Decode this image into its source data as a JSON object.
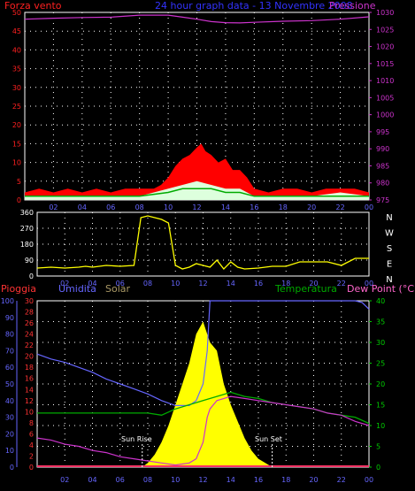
{
  "header": {
    "left_label": "Forza vento",
    "center_label": "24 hour graph data - 13 Novembre 2008",
    "right_label": "Pressione"
  },
  "colors": {
    "bg": "#000000",
    "grid": "#ffffff",
    "wind_left_axis": "#ff2020",
    "pressure": "#cc33cc",
    "gust": "#ff0000",
    "wind_avg": "#ffffff",
    "wind_green": "#00aa00",
    "direction": "#ffff00",
    "rain": "#ff3366",
    "humidity": "#6666ff",
    "solar": "#ffff00",
    "solar_label": "#aa9966",
    "temperature": "#00aa00",
    "dew_point": "#cc33cc",
    "rain_axis": "#ff3333",
    "temp_axis": "#00cc00",
    "time_axis": "#6666ff",
    "dewpoint_label": "#ff66cc"
  },
  "time_ticks": [
    "02",
    "04",
    "06",
    "08",
    "10",
    "12",
    "14",
    "16",
    "18",
    "20",
    "22",
    "00"
  ],
  "wind_pressure_chart": {
    "type": "line",
    "left_axis": {
      "label": "Forza vento",
      "ylim": [
        0,
        50
      ],
      "ticks": [
        "0",
        "5",
        "10",
        "15",
        "20",
        "25",
        "30",
        "35",
        "40",
        "45",
        "50"
      ]
    },
    "right_axis": {
      "label": "Pressione",
      "ylim": [
        975,
        1030
      ],
      "ticks": [
        "975",
        "980",
        "985",
        "990",
        "995",
        "1000",
        "1005",
        "1010",
        "1015",
        "1020",
        "1025",
        "1030"
      ]
    },
    "pressure_x": [
      0,
      2,
      4,
      6,
      8,
      10,
      11,
      12,
      13,
      14,
      15,
      16,
      18,
      20,
      22,
      24
    ],
    "pressure_y": [
      1028,
      1028.3,
      1028.5,
      1028.6,
      1029.2,
      1029.2,
      1028.6,
      1028,
      1027.3,
      1027.0,
      1026.9,
      1027.1,
      1027.4,
      1027.6,
      1028.0,
      1028.7
    ],
    "gust_x": [
      0,
      1,
      2,
      3,
      4,
      5,
      6,
      7,
      8,
      9,
      9.5,
      10,
      10.5,
      11,
      11.5,
      12,
      12.3,
      12.6,
      13,
      13.5,
      14,
      14.5,
      15,
      15.5,
      16,
      17,
      18,
      19,
      20,
      21,
      22,
      23,
      24
    ],
    "gust_y": [
      2,
      3,
      2,
      3,
      2,
      3,
      2,
      3,
      3,
      3,
      4,
      6,
      9,
      11,
      12,
      14,
      15,
      13,
      12,
      10,
      11,
      8,
      8,
      6,
      3,
      2,
      3,
      3,
      2,
      3,
      3,
      3,
      2
    ],
    "wind_x": [
      0,
      2,
      4,
      6,
      8,
      9,
      10,
      11,
      12,
      13,
      14,
      15,
      16,
      18,
      20,
      22,
      24
    ],
    "wind_y": [
      1,
      1,
      1,
      1,
      1,
      2,
      3,
      4,
      5,
      4,
      3,
      3,
      1,
      1,
      1,
      2,
      1
    ],
    "green_x": [
      0,
      2,
      4,
      6,
      8,
      9,
      10,
      11,
      12,
      13,
      14,
      15,
      16,
      18,
      20,
      22,
      24
    ],
    "green_y": [
      1,
      1,
      1,
      1,
      1,
      1.5,
      2,
      3,
      3,
      3,
      2,
      2,
      1,
      1,
      1,
      1,
      1
    ]
  },
  "direction_chart": {
    "type": "line",
    "ylim": [
      0,
      360
    ],
    "ticks": [
      "0",
      "90",
      "180",
      "270",
      "360"
    ],
    "compass": [
      "N",
      "W",
      "S",
      "E",
      "N"
    ],
    "x": [
      0,
      1,
      2,
      3,
      3.5,
      4,
      5,
      6,
      7,
      7.5,
      8,
      9,
      9.5,
      10,
      10.5,
      11,
      11.5,
      12,
      12.5,
      13,
      13.5,
      14,
      14.5,
      15,
      16,
      17,
      18,
      19,
      20,
      21,
      22,
      23,
      24
    ],
    "y": [
      45,
      50,
      45,
      50,
      55,
      50,
      60,
      55,
      60,
      330,
      340,
      320,
      300,
      60,
      40,
      50,
      70,
      60,
      50,
      90,
      40,
      80,
      50,
      40,
      45,
      55,
      55,
      80,
      80,
      80,
      60,
      100,
      100
    ]
  },
  "weather_chart": {
    "type": "line",
    "labels": {
      "rain": "Pioggia",
      "humidity": "Umidita",
      "solar": "Solar",
      "temperature": "Temperatura",
      "dew_point": "Dew Point (°C)",
      "sun_rise": "Sun Rise",
      "sun_set": "Sun Set"
    },
    "humidity_axis": {
      "ylim": [
        0,
        100
      ],
      "ticks": [
        "0",
        "10",
        "20",
        "30",
        "40",
        "50",
        "60",
        "70",
        "80",
        "90",
        "100"
      ]
    },
    "rain_axis": {
      "ylim": [
        0,
        30
      ],
      "ticks": [
        "0",
        "2",
        "4",
        "6",
        "8",
        "10",
        "12",
        "14",
        "16",
        "18",
        "20",
        "22",
        "24",
        "26",
        "28",
        "30"
      ]
    },
    "temp_axis": {
      "ylim": [
        0,
        40
      ],
      "ticks": [
        "0",
        "5",
        "10",
        "15",
        "20",
        "25",
        "30",
        "35",
        "40"
      ]
    },
    "humidity_x": [
      0,
      1,
      2,
      3,
      4,
      5,
      6,
      7,
      8,
      9,
      10,
      10.5,
      11,
      11.5,
      12,
      12.3,
      12.5,
      13,
      14,
      15,
      16,
      17,
      18,
      19,
      20,
      21,
      22,
      23,
      23.5,
      24
    ],
    "humidity_y": [
      68,
      65,
      63,
      60,
      57,
      53,
      50,
      47,
      44,
      40,
      37,
      37,
      37,
      40,
      50,
      70,
      100,
      100,
      100,
      100,
      100,
      100,
      100,
      100,
      100,
      100,
      100,
      100,
      99,
      95
    ],
    "temperature_x": [
      0,
      2,
      4,
      6,
      8,
      9,
      10,
      10.5,
      11,
      12,
      13,
      14,
      15,
      16,
      17,
      18,
      19,
      20,
      21,
      22,
      23,
      24
    ],
    "temperature_y": [
      13,
      13,
      13,
      13,
      13,
      12.5,
      14,
      14.5,
      15,
      16,
      17,
      18,
      17,
      16.5,
      15.5,
      15,
      14.5,
      14,
      13,
      12.5,
      12,
      10.5
    ],
    "dewpoint_x": [
      0,
      1,
      2,
      3,
      4,
      5,
      6,
      7,
      8,
      9,
      10,
      11,
      11.5,
      12,
      12.3,
      12.5,
      13,
      14,
      15,
      16,
      17,
      18,
      19,
      20,
      21,
      22,
      23,
      24
    ],
    "dewpoint_y": [
      7,
      6.5,
      5.5,
      5,
      4,
      3.5,
      2.5,
      2,
      1.5,
      1,
      0.5,
      1,
      2,
      6,
      12,
      14,
      16,
      17,
      16.5,
      16,
      15.5,
      15,
      14.5,
      14,
      13,
      12.5,
      11,
      10
    ],
    "solar_x": [
      7.6,
      8,
      8.5,
      9,
      9.5,
      10,
      10.5,
      11,
      11.5,
      12,
      12.5,
      13,
      13.5,
      14,
      14.5,
      15,
      15.5,
      16,
      16.5,
      17
    ],
    "solar_y": [
      0,
      1,
      3,
      6,
      10,
      15,
      20,
      25,
      32,
      35,
      30,
      28,
      20,
      15,
      11,
      7,
      4,
      2,
      1,
      0
    ],
    "sun_rise_x": 7.6,
    "sun_set_x": 17.0
  }
}
